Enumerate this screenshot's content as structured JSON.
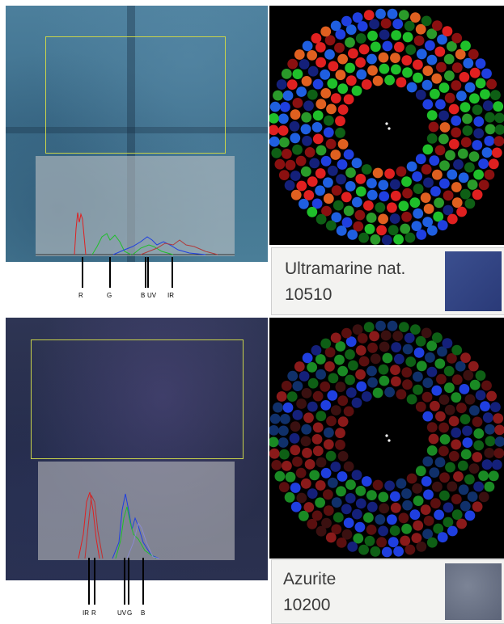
{
  "top": {
    "spectrum_labels": [
      "R",
      "G",
      "B",
      "UV",
      "IR"
    ],
    "pigment": {
      "name": "Ultramarine nat.",
      "code": "10510",
      "swatch_color": "#3b4f8f"
    }
  },
  "bottom": {
    "spectrum_labels": [
      "IR",
      "R",
      "UV",
      "G",
      "B"
    ],
    "pigment": {
      "name": "Azurite",
      "code": "10200",
      "swatch_color": "#5c6478"
    }
  },
  "colors": {
    "red": "#e02020",
    "green": "#1fbf2a",
    "blue": "#1f3fe0",
    "roi": "#c9d34a"
  }
}
